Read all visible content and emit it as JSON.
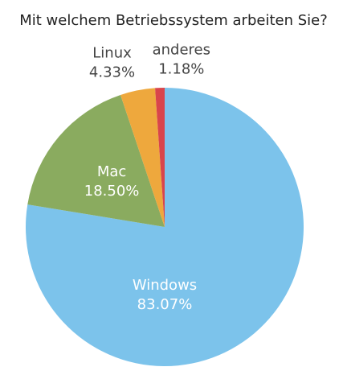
{
  "chart_data": {
    "type": "pie",
    "title": "Mit welchem Betriebssystem arbeiten Sie?",
    "categories": [
      "Windows",
      "Mac",
      "Linux",
      "anderes"
    ],
    "values": [
      83.07,
      18.5,
      4.33,
      1.18
    ],
    "value_labels": [
      "83.07%",
      "18.50%",
      "4.33%",
      "1.18%"
    ],
    "colors": [
      "#7cc3eb",
      "#8aab5f",
      "#eea83d",
      "#d9454b"
    ]
  }
}
